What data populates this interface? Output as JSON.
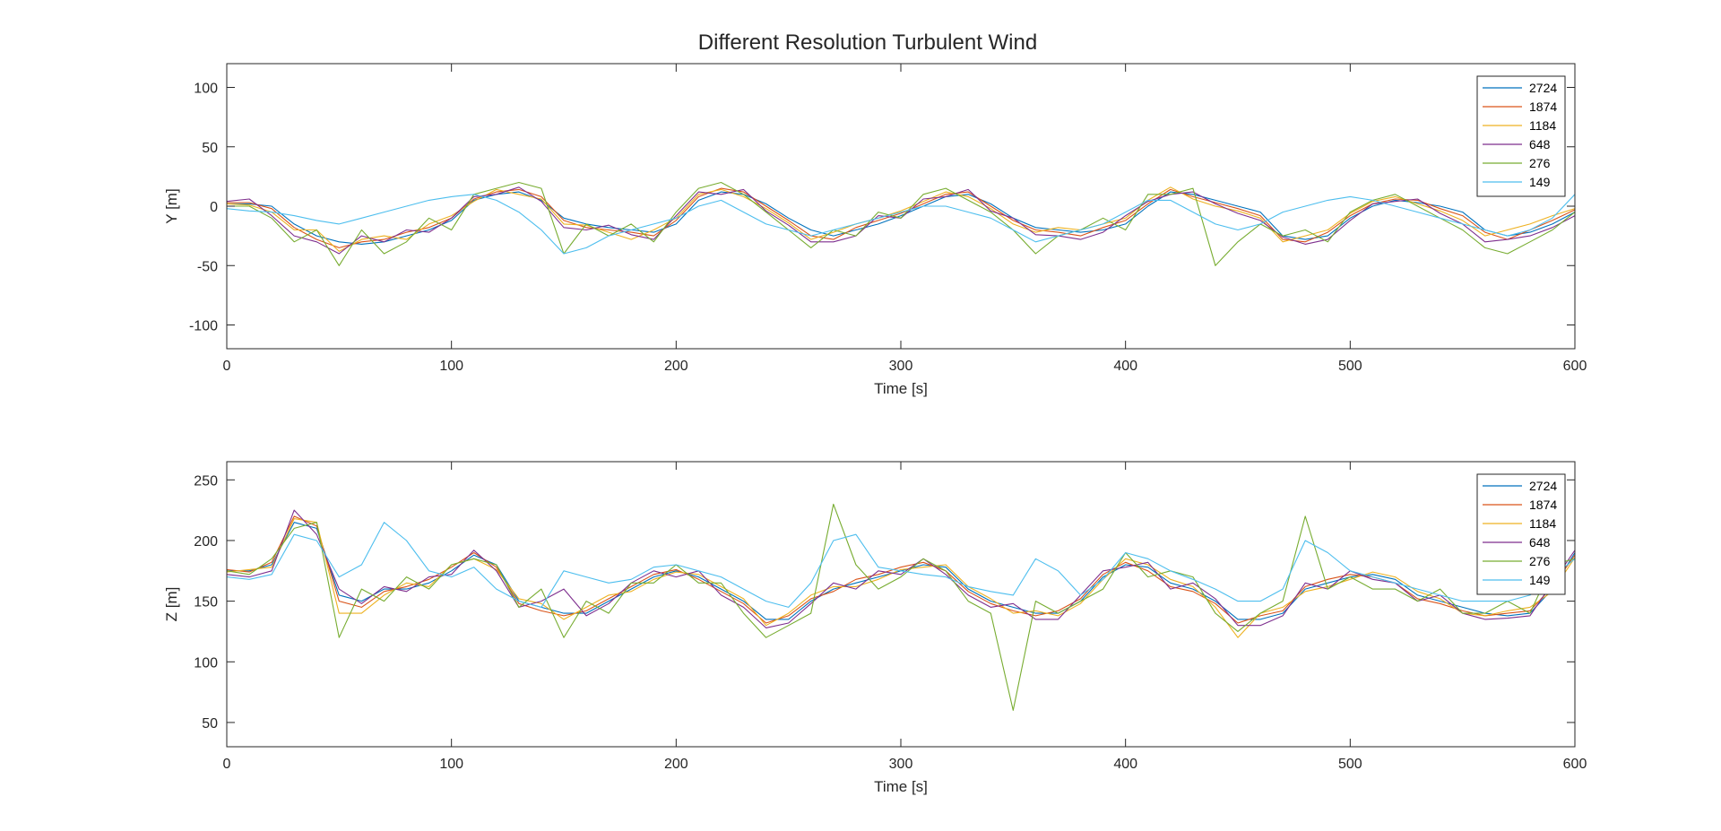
{
  "figure": {
    "title": "Different Resolution Turbulent Wind"
  },
  "chart_data": [
    {
      "type": "line",
      "title": "Different Resolution Turbulent Wind",
      "xlabel": "Time [s]",
      "ylabel": "Y [m]",
      "xlim": [
        0,
        600
      ],
      "ylim": [
        -120,
        120
      ],
      "xticks": [
        0,
        100,
        200,
        300,
        400,
        500,
        600
      ],
      "yticks": [
        -100,
        -50,
        0,
        50,
        100
      ],
      "grid": false,
      "legend_position": "top-right",
      "x": [
        0,
        10,
        20,
        30,
        40,
        50,
        60,
        70,
        80,
        90,
        100,
        110,
        120,
        130,
        140,
        150,
        160,
        170,
        180,
        190,
        200,
        210,
        220,
        230,
        240,
        250,
        260,
        270,
        280,
        290,
        300,
        310,
        320,
        330,
        340,
        350,
        360,
        370,
        380,
        390,
        400,
        410,
        420,
        430,
        440,
        450,
        460,
        470,
        480,
        490,
        500,
        510,
        520,
        530,
        540,
        550,
        560,
        570,
        580,
        590,
        600
      ],
      "series": [
        {
          "name": "2724",
          "color": "#0072BD",
          "values": [
            2,
            2,
            0,
            -15,
            -25,
            -30,
            -32,
            -30,
            -25,
            -20,
            -12,
            5,
            10,
            12,
            5,
            -10,
            -15,
            -18,
            -20,
            -22,
            -15,
            5,
            12,
            10,
            2,
            -10,
            -20,
            -25,
            -20,
            -15,
            -8,
            0,
            8,
            10,
            2,
            -10,
            -18,
            -20,
            -22,
            -20,
            -15,
            0,
            12,
            10,
            5,
            0,
            -5,
            -25,
            -28,
            -25,
            -10,
            0,
            5,
            3,
            0,
            -5,
            -20,
            -25,
            -22,
            -15,
            -5
          ]
        },
        {
          "name": "1874",
          "color": "#D95319",
          "values": [
            3,
            3,
            -2,
            -18,
            -28,
            -35,
            -30,
            -28,
            -22,
            -18,
            -10,
            6,
            12,
            14,
            8,
            -12,
            -18,
            -20,
            -22,
            -25,
            -12,
            8,
            15,
            12,
            0,
            -12,
            -25,
            -28,
            -18,
            -12,
            -6,
            2,
            10,
            12,
            0,
            -12,
            -20,
            -22,
            -25,
            -18,
            -12,
            2,
            14,
            8,
            3,
            -2,
            -8,
            -28,
            -30,
            -22,
            -8,
            2,
            6,
            5,
            -2,
            -8,
            -22,
            -28,
            -20,
            -12,
            -3
          ]
        },
        {
          "name": "1184",
          "color": "#EDB120",
          "values": [
            2,
            1,
            -5,
            -20,
            -20,
            -38,
            -28,
            -25,
            -28,
            -15,
            -8,
            4,
            14,
            10,
            6,
            -15,
            -16,
            -22,
            -28,
            -20,
            -10,
            10,
            14,
            8,
            -2,
            -14,
            -28,
            -22,
            -15,
            -10,
            -4,
            4,
            12,
            8,
            -2,
            -15,
            -22,
            -18,
            -20,
            -15,
            -10,
            5,
            16,
            6,
            0,
            -4,
            -10,
            -30,
            -25,
            -20,
            -6,
            4,
            8,
            2,
            -4,
            -12,
            -25,
            -20,
            -15,
            -8,
            -2
          ]
        },
        {
          "name": "648",
          "color": "#7E2F8E",
          "values": [
            4,
            6,
            -8,
            -25,
            -30,
            -40,
            -25,
            -30,
            -20,
            -22,
            -10,
            8,
            10,
            16,
            4,
            -18,
            -20,
            -16,
            -24,
            -28,
            -8,
            12,
            10,
            14,
            -4,
            -16,
            -30,
            -30,
            -25,
            -8,
            -10,
            6,
            8,
            14,
            -4,
            -10,
            -24,
            -25,
            -28,
            -22,
            -8,
            4,
            10,
            12,
            2,
            -6,
            -12,
            -26,
            -32,
            -28,
            -12,
            2,
            4,
            6,
            -6,
            -15,
            -30,
            -28,
            -25,
            -18,
            -8
          ]
        },
        {
          "name": "276",
          "color": "#77AC30",
          "values": [
            0,
            0,
            -10,
            -30,
            -20,
            -50,
            -20,
            -40,
            -30,
            -10,
            -20,
            10,
            15,
            20,
            15,
            -40,
            -15,
            -25,
            -15,
            -30,
            -5,
            15,
            20,
            10,
            -5,
            -20,
            -35,
            -20,
            -25,
            -5,
            -10,
            10,
            15,
            5,
            -5,
            -20,
            -40,
            -25,
            -20,
            -10,
            -20,
            10,
            10,
            15,
            -50,
            -30,
            -15,
            -25,
            -20,
            -30,
            -5,
            5,
            10,
            0,
            -10,
            -20,
            -35,
            -40,
            -30,
            -20,
            -5
          ]
        },
        {
          "name": "149",
          "color": "#4DBEEE",
          "values": [
            -2,
            -4,
            -5,
            -8,
            -12,
            -15,
            -10,
            -5,
            0,
            5,
            8,
            10,
            5,
            -5,
            -20,
            -40,
            -35,
            -25,
            -20,
            -15,
            -10,
            0,
            5,
            -5,
            -15,
            -20,
            -25,
            -20,
            -15,
            -10,
            -5,
            0,
            0,
            -5,
            -10,
            -20,
            -30,
            -25,
            -20,
            -15,
            -5,
            5,
            5,
            -5,
            -15,
            -20,
            -15,
            -5,
            0,
            5,
            8,
            5,
            0,
            -5,
            -10,
            -15,
            -20,
            -25,
            -20,
            -10,
            10
          ]
        }
      ]
    },
    {
      "type": "line",
      "xlabel": "Time [s]",
      "ylabel": "Z [m]",
      "xlim": [
        0,
        600
      ],
      "ylim": [
        30,
        265
      ],
      "xticks": [
        0,
        100,
        200,
        300,
        400,
        500,
        600
      ],
      "yticks": [
        50,
        100,
        150,
        200,
        250
      ],
      "grid": false,
      "legend_position": "top-right",
      "x": [
        0,
        10,
        20,
        30,
        40,
        50,
        60,
        70,
        80,
        90,
        100,
        110,
        120,
        130,
        140,
        150,
        160,
        170,
        180,
        190,
        200,
        210,
        220,
        230,
        240,
        250,
        260,
        270,
        280,
        290,
        300,
        310,
        320,
        330,
        340,
        350,
        360,
        370,
        380,
        390,
        400,
        410,
        420,
        430,
        440,
        450,
        460,
        470,
        480,
        490,
        500,
        510,
        520,
        530,
        540,
        550,
        560,
        570,
        580,
        590,
        600
      ],
      "series": [
        {
          "name": "2724",
          "color": "#0072BD",
          "values": [
            175,
            175,
            180,
            215,
            210,
            155,
            150,
            160,
            160,
            165,
            175,
            188,
            180,
            150,
            145,
            140,
            140,
            150,
            160,
            170,
            175,
            170,
            160,
            150,
            135,
            135,
            150,
            160,
            165,
            170,
            175,
            180,
            178,
            160,
            150,
            145,
            140,
            140,
            150,
            170,
            180,
            178,
            165,
            160,
            150,
            135,
            135,
            140,
            160,
            165,
            170,
            172,
            168,
            155,
            150,
            145,
            140,
            138,
            140,
            160,
            190
          ]
        },
        {
          "name": "1874",
          "color": "#D95319",
          "values": [
            176,
            174,
            182,
            220,
            212,
            150,
            145,
            158,
            162,
            168,
            178,
            190,
            178,
            148,
            142,
            138,
            142,
            152,
            162,
            172,
            176,
            168,
            158,
            148,
            132,
            138,
            152,
            158,
            168,
            172,
            178,
            182,
            175,
            158,
            148,
            142,
            138,
            142,
            152,
            172,
            182,
            175,
            162,
            158,
            148,
            132,
            138,
            142,
            162,
            168,
            172,
            170,
            165,
            152,
            148,
            142,
            138,
            140,
            142,
            162,
            188
          ]
        },
        {
          "name": "1184",
          "color": "#EDB120",
          "values": [
            174,
            176,
            178,
            218,
            215,
            140,
            140,
            155,
            165,
            162,
            180,
            185,
            176,
            152,
            148,
            135,
            145,
            155,
            158,
            168,
            174,
            172,
            162,
            152,
            130,
            140,
            155,
            162,
            162,
            168,
            176,
            178,
            180,
            162,
            152,
            140,
            142,
            138,
            148,
            168,
            185,
            180,
            168,
            162,
            145,
            120,
            140,
            145,
            158,
            162,
            168,
            174,
            170,
            158,
            152,
            140,
            138,
            142,
            145,
            158,
            186
          ]
        },
        {
          "name": "648",
          "color": "#7E2F8E",
          "values": [
            172,
            170,
            175,
            225,
            205,
            160,
            148,
            162,
            158,
            170,
            172,
            192,
            175,
            145,
            150,
            160,
            138,
            148,
            165,
            175,
            170,
            175,
            155,
            145,
            128,
            132,
            148,
            165,
            160,
            175,
            172,
            185,
            172,
            155,
            145,
            148,
            135,
            135,
            155,
            175,
            178,
            182,
            160,
            165,
            152,
            130,
            130,
            138,
            165,
            160,
            175,
            168,
            165,
            150,
            155,
            140,
            135,
            136,
            138,
            165,
            192
          ]
        },
        {
          "name": "276",
          "color": "#77AC30",
          "values": [
            175,
            172,
            185,
            210,
            215,
            120,
            160,
            150,
            170,
            160,
            180,
            185,
            180,
            145,
            160,
            120,
            150,
            140,
            165,
            165,
            180,
            165,
            165,
            140,
            120,
            130,
            140,
            230,
            180,
            160,
            170,
            185,
            175,
            150,
            140,
            60,
            150,
            140,
            150,
            160,
            190,
            170,
            175,
            170,
            140,
            125,
            140,
            150,
            220,
            160,
            170,
            160,
            160,
            150,
            160,
            140,
            140,
            150,
            140,
            180,
            185
          ]
        },
        {
          "name": "149",
          "color": "#4DBEEE",
          "values": [
            170,
            168,
            172,
            205,
            200,
            170,
            180,
            215,
            200,
            175,
            170,
            178,
            160,
            150,
            145,
            175,
            170,
            165,
            168,
            178,
            180,
            175,
            170,
            160,
            150,
            145,
            165,
            200,
            205,
            178,
            175,
            172,
            170,
            162,
            158,
            155,
            185,
            175,
            155,
            168,
            190,
            185,
            175,
            168,
            160,
            150,
            150,
            160,
            200,
            190,
            175,
            170,
            165,
            160,
            155,
            150,
            150,
            150,
            155,
            170,
            185
          ]
        }
      ]
    }
  ]
}
